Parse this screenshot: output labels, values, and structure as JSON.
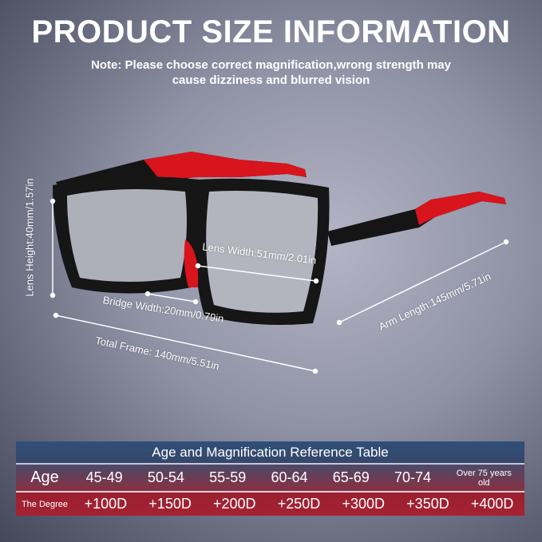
{
  "title": "PRODUCT SIZE INFORMATION",
  "note_line1": "Note: Please choose correct magnification,wrong strength may",
  "note_line2": "cause dizziness and blurred vision",
  "dimensions": {
    "lens_height": "Lens Height:40mm/1.57in",
    "lens_width": "Lens Width:51mm/2.01in",
    "bridge_width": "Bridge Width:20mm/0.79in",
    "total_frame": "Total Frame: 140mm/5.51in",
    "arm_length": "Arm Length:145mm/5.71in"
  },
  "colors": {
    "frame": "#111111",
    "accent": "#d8141c",
    "table_header": "#2f4f78",
    "table_rows": "#a52232"
  },
  "table": {
    "title": "Age and Magnification Reference Table",
    "age_label": "Age",
    "degree_label": "The Degree",
    "ages": [
      "45-49",
      "50-54",
      "55-59",
      "60-64",
      "65-69",
      "70-74",
      "Over 75 years old"
    ],
    "degrees": [
      "+100D",
      "+150D",
      "+200D",
      "+250D",
      "+300D",
      "+350D",
      "+400D"
    ]
  }
}
